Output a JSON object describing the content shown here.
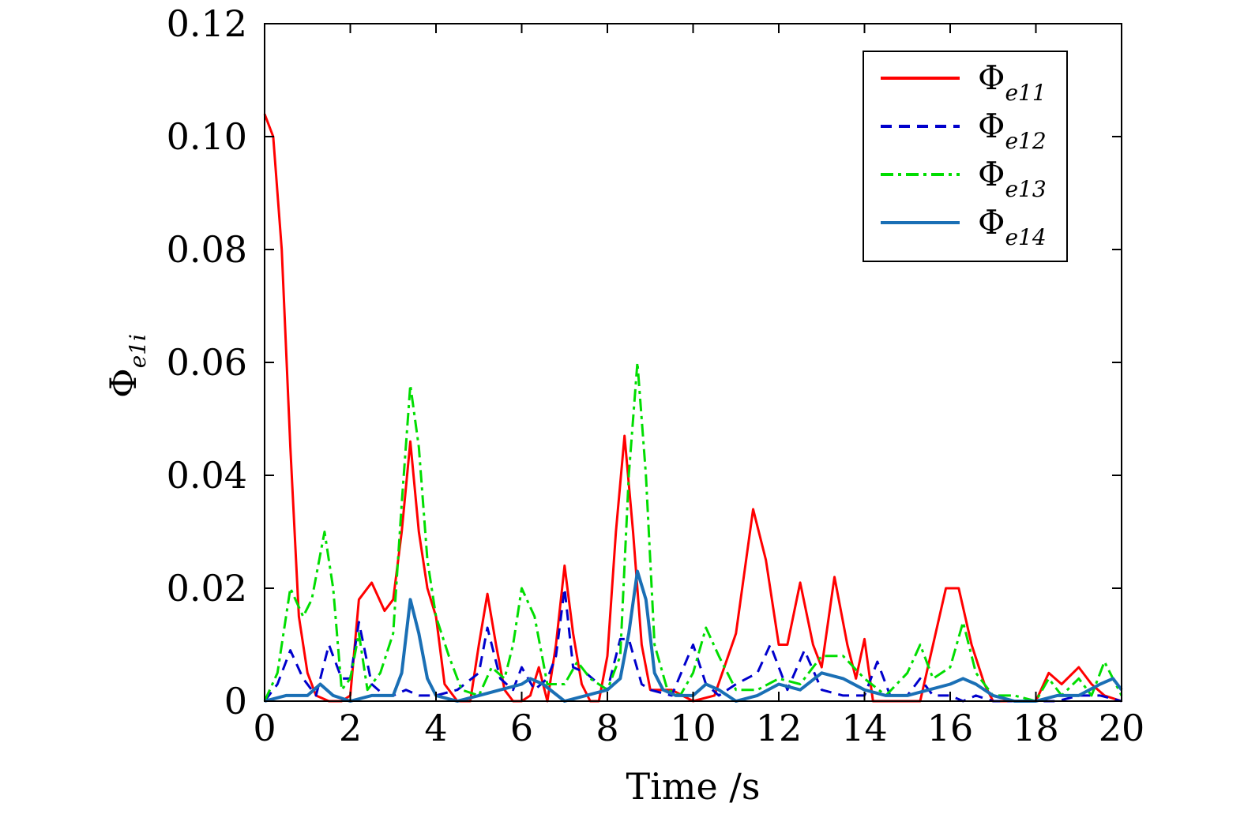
{
  "chart_data": {
    "type": "line",
    "title": "",
    "xlabel": "Time /s",
    "ylabel": {
      "symbol": "Φ",
      "subscript": "e1i"
    },
    "xlim": [
      0,
      20
    ],
    "ylim": [
      0,
      0.12
    ],
    "xticks": [
      "0",
      "2",
      "4",
      "6",
      "8",
      "10",
      "12",
      "14",
      "16",
      "18",
      "20"
    ],
    "yticks": [
      "0",
      "0.02",
      "0.04",
      "0.06",
      "0.08",
      "0.10",
      "0.12"
    ],
    "grid": false,
    "legend_position": "top-right",
    "series": [
      {
        "name": "Φ",
        "sub": "e11",
        "color": "#ff0000",
        "style": "solid",
        "x": [
          0,
          0.2,
          0.4,
          0.6,
          0.8,
          1.0,
          1.2,
          1.5,
          1.8,
          2.0,
          2.2,
          2.5,
          2.8,
          3.0,
          3.2,
          3.4,
          3.6,
          3.8,
          4.0,
          4.2,
          4.5,
          4.8,
          5.0,
          5.2,
          5.4,
          5.6,
          5.8,
          6.0,
          6.2,
          6.4,
          6.6,
          6.8,
          7.0,
          7.2,
          7.4,
          7.6,
          7.8,
          8.0,
          8.2,
          8.4,
          8.6,
          8.8,
          9.0,
          9.5,
          10.0,
          10.5,
          11.0,
          11.4,
          11.7,
          12.0,
          12.2,
          12.5,
          12.8,
          13.0,
          13.3,
          13.6,
          13.8,
          14.0,
          14.2,
          14.5,
          15.0,
          15.3,
          15.6,
          15.9,
          16.2,
          16.5,
          16.8,
          17.0,
          17.5,
          18.0,
          18.3,
          18.6,
          19.0,
          19.3,
          19.6,
          20.0
        ],
        "y": [
          0.104,
          0.1,
          0.08,
          0.045,
          0.015,
          0.005,
          0.001,
          0.0,
          0.0,
          0.001,
          0.018,
          0.021,
          0.016,
          0.018,
          0.03,
          0.046,
          0.03,
          0.02,
          0.015,
          0.003,
          0.0,
          0.0,
          0.01,
          0.019,
          0.01,
          0.002,
          0.0,
          0.0,
          0.001,
          0.006,
          0.0,
          0.01,
          0.024,
          0.012,
          0.003,
          0.0,
          0.0,
          0.008,
          0.03,
          0.047,
          0.03,
          0.01,
          0.002,
          0.002,
          0.0,
          0.001,
          0.012,
          0.034,
          0.025,
          0.01,
          0.01,
          0.021,
          0.01,
          0.006,
          0.022,
          0.01,
          0.004,
          0.011,
          0.0,
          0.0,
          0.0,
          0.0,
          0.01,
          0.02,
          0.02,
          0.01,
          0.003,
          0.0,
          0.0,
          0.0,
          0.005,
          0.003,
          0.006,
          0.003,
          0.001,
          0.0
        ]
      },
      {
        "name": "Φ",
        "sub": "e12",
        "color": "#0000cc",
        "style": "dashed",
        "x": [
          0,
          0.3,
          0.6,
          0.9,
          1.2,
          1.5,
          1.8,
          2.0,
          2.2,
          2.5,
          2.8,
          3.0,
          3.3,
          3.6,
          4.0,
          4.5,
          5.0,
          5.2,
          5.5,
          5.8,
          6.0,
          6.3,
          6.6,
          6.8,
          7.0,
          7.2,
          7.5,
          7.8,
          8.0,
          8.3,
          8.5,
          8.8,
          9.0,
          9.5,
          10.0,
          10.3,
          10.6,
          11.0,
          11.5,
          11.8,
          12.2,
          12.6,
          13.0,
          13.5,
          14.0,
          14.3,
          14.6,
          15.0,
          15.3,
          15.6,
          16.0,
          16.3,
          16.6,
          17.0,
          17.5,
          18.0,
          18.5,
          19.0,
          19.5,
          20.0
        ],
        "y": [
          0.0,
          0.003,
          0.009,
          0.004,
          0.001,
          0.01,
          0.004,
          0.004,
          0.014,
          0.003,
          0.001,
          0.001,
          0.002,
          0.001,
          0.001,
          0.002,
          0.005,
          0.013,
          0.004,
          0.002,
          0.006,
          0.002,
          0.004,
          0.008,
          0.02,
          0.006,
          0.005,
          0.003,
          0.002,
          0.011,
          0.011,
          0.003,
          0.002,
          0.001,
          0.01,
          0.003,
          0.001,
          0.003,
          0.005,
          0.01,
          0.002,
          0.009,
          0.002,
          0.001,
          0.001,
          0.007,
          0.001,
          0.001,
          0.004,
          0.001,
          0.001,
          0.0,
          0.001,
          0.0,
          0.0,
          0.0,
          0.0,
          0.001,
          0.001,
          0.0
        ]
      },
      {
        "name": "Φ",
        "sub": "e13",
        "color": "#00dd00",
        "style": "dashdot",
        "x": [
          0,
          0.3,
          0.6,
          0.9,
          1.1,
          1.4,
          1.6,
          1.8,
          2.0,
          2.2,
          2.4,
          2.7,
          3.0,
          3.2,
          3.4,
          3.6,
          3.8,
          4.0,
          4.3,
          4.6,
          5.0,
          5.3,
          5.6,
          5.8,
          6.0,
          6.3,
          6.6,
          7.0,
          7.3,
          7.6,
          8.0,
          8.3,
          8.5,
          8.7,
          8.9,
          9.1,
          9.4,
          9.7,
          10.0,
          10.3,
          10.6,
          11.0,
          11.5,
          12.0,
          12.5,
          13.0,
          13.5,
          14.0,
          14.5,
          15.0,
          15.3,
          15.6,
          16.0,
          16.3,
          16.6,
          17.0,
          17.5,
          18.0,
          18.3,
          18.6,
          19.0,
          19.3,
          19.6,
          20.0
        ],
        "y": [
          0.0,
          0.005,
          0.02,
          0.015,
          0.018,
          0.03,
          0.02,
          0.002,
          0.004,
          0.012,
          0.002,
          0.005,
          0.012,
          0.035,
          0.056,
          0.045,
          0.025,
          0.015,
          0.008,
          0.002,
          0.001,
          0.006,
          0.004,
          0.01,
          0.02,
          0.015,
          0.003,
          0.003,
          0.007,
          0.004,
          0.002,
          0.008,
          0.04,
          0.06,
          0.04,
          0.01,
          0.002,
          0.001,
          0.005,
          0.013,
          0.008,
          0.002,
          0.002,
          0.004,
          0.003,
          0.008,
          0.008,
          0.004,
          0.001,
          0.005,
          0.01,
          0.004,
          0.006,
          0.014,
          0.005,
          0.001,
          0.001,
          0.0,
          0.004,
          0.001,
          0.004,
          0.001,
          0.007,
          0.001
        ]
      },
      {
        "name": "Φ",
        "sub": "e14",
        "color": "#1a6fb5",
        "style": "solid",
        "x": [
          0,
          0.5,
          1.0,
          1.3,
          1.6,
          2.0,
          2.5,
          3.0,
          3.2,
          3.4,
          3.6,
          3.8,
          4.0,
          4.5,
          5.0,
          5.5,
          6.0,
          6.2,
          6.5,
          7.0,
          7.5,
          8.0,
          8.3,
          8.5,
          8.7,
          8.9,
          9.1,
          9.3,
          9.6,
          10.0,
          10.3,
          10.6,
          11.0,
          11.5,
          12.0,
          12.5,
          13.0,
          13.5,
          14.0,
          14.5,
          15.0,
          15.5,
          16.0,
          16.3,
          16.6,
          17.0,
          17.5,
          18.0,
          18.5,
          19.0,
          19.5,
          19.8,
          20.0
        ],
        "y": [
          0.0,
          0.001,
          0.001,
          0.003,
          0.001,
          0.0,
          0.001,
          0.001,
          0.005,
          0.018,
          0.012,
          0.004,
          0.001,
          0.0,
          0.001,
          0.002,
          0.003,
          0.004,
          0.003,
          0.0,
          0.001,
          0.002,
          0.004,
          0.012,
          0.023,
          0.018,
          0.005,
          0.002,
          0.001,
          0.001,
          0.003,
          0.002,
          0.0,
          0.001,
          0.003,
          0.002,
          0.005,
          0.004,
          0.002,
          0.001,
          0.001,
          0.002,
          0.003,
          0.004,
          0.003,
          0.001,
          0.0,
          0.0,
          0.001,
          0.001,
          0.003,
          0.004,
          0.002
        ]
      }
    ]
  }
}
